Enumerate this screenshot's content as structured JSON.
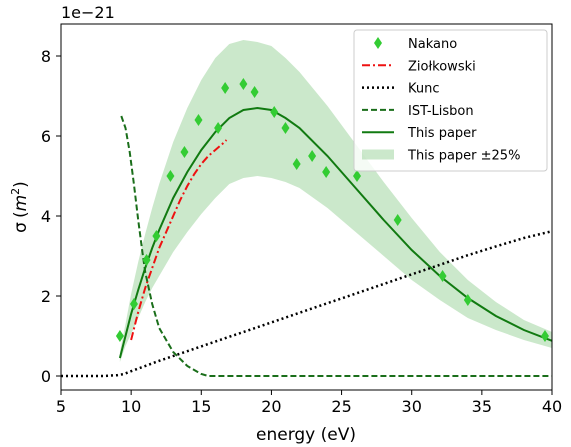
{
  "chart_data": {
    "type": "line",
    "xlabel": "energy (eV)",
    "ylabel": "σ (m²)",
    "ylabel_sigma": "σ",
    "ylabel_unit_open": "(",
    "ylabel_unit_m": "m",
    "ylabel_unit_exp": "2",
    "ylabel_unit_close": ")",
    "offset_text": "1e−21",
    "xlim": [
      5,
      40
    ],
    "ylim": [
      -0.35,
      8.8
    ],
    "xticks": [
      5,
      10,
      15,
      20,
      25,
      30,
      35,
      40
    ],
    "xtick_labels": [
      "5",
      "10",
      "15",
      "20",
      "25",
      "30",
      "35",
      "40"
    ],
    "yticks": [
      0,
      2,
      4,
      6,
      8
    ],
    "ytick_labels": [
      "0",
      "2",
      "4",
      "6",
      "8"
    ],
    "grid": false,
    "legend_position": "top-right",
    "series": [
      {
        "name": "Nakano",
        "kind": "scatter",
        "color": "#33cc33",
        "x": [
          9.2,
          10.2,
          11.1,
          11.8,
          12.8,
          13.8,
          14.8,
          16.2,
          16.7,
          18.0,
          18.8,
          20.2,
          21.0,
          21.8,
          22.9,
          23.9,
          26.1,
          29.0,
          32.2,
          34.0,
          39.5
        ],
        "y": [
          1.0,
          1.8,
          2.9,
          3.5,
          5.0,
          5.6,
          6.4,
          6.2,
          7.2,
          7.3,
          7.1,
          6.6,
          6.2,
          5.3,
          5.5,
          5.1,
          5.0,
          3.9,
          2.5,
          1.9,
          1.0
        ]
      },
      {
        "name": "Ziołkowski",
        "kind": "line",
        "style": "dashdot",
        "color": "#ee1111",
        "x": [
          10.0,
          10.5,
          11.0,
          11.5,
          12.0,
          12.5,
          13.0,
          13.5,
          14.0,
          14.5,
          15.0,
          15.5,
          16.0,
          16.5,
          16.8
        ],
        "y": [
          0.9,
          1.6,
          2.2,
          2.7,
          3.2,
          3.6,
          4.0,
          4.4,
          4.75,
          5.05,
          5.3,
          5.5,
          5.65,
          5.8,
          5.9
        ]
      },
      {
        "name": "Kunc",
        "kind": "line",
        "style": "dotted",
        "color": "#000000",
        "x": [
          5.0,
          8.0,
          9.0,
          9.5,
          10.0,
          11.0,
          12.0,
          13.0,
          14.0,
          15.0,
          16.0,
          17.0,
          18.0,
          20.0,
          22.0,
          24.0,
          26.0,
          28.0,
          30.0,
          32.0,
          34.0,
          36.0,
          38.0,
          40.0
        ],
        "y": [
          0.0,
          0.0,
          0.02,
          0.05,
          0.12,
          0.25,
          0.38,
          0.5,
          0.62,
          0.74,
          0.86,
          0.98,
          1.1,
          1.34,
          1.58,
          1.82,
          2.06,
          2.3,
          2.54,
          2.78,
          3.02,
          3.24,
          3.45,
          3.62
        ]
      },
      {
        "name": "IST-Lisbon",
        "kind": "line",
        "style": "dashed",
        "color": "#1a6e1a",
        "x": [
          9.3,
          9.6,
          9.9,
          10.2,
          10.5,
          10.8,
          11.0,
          11.5,
          12.0,
          13.0,
          14.0,
          15.0,
          15.5,
          16.0,
          17.0,
          18.0,
          20.0,
          22.0,
          24.0,
          26.0,
          28.0,
          30.0,
          32.0,
          34.0,
          36.0,
          38.0,
          40.0
        ],
        "y": [
          6.5,
          6.2,
          5.6,
          4.8,
          3.9,
          3.1,
          2.6,
          1.8,
          1.2,
          0.6,
          0.25,
          0.05,
          0.0,
          0.0,
          0.0,
          0.0,
          0.0,
          0.0,
          0.0,
          0.0,
          0.0,
          0.0,
          0.0,
          0.0,
          0.0,
          0.0,
          0.0
        ]
      },
      {
        "name": "This paper",
        "kind": "line",
        "style": "solid",
        "color": "#117a11",
        "x": [
          9.2,
          9.6,
          10.0,
          10.5,
          11.0,
          11.5,
          12.0,
          13.0,
          14.0,
          15.0,
          16.0,
          17.0,
          18.0,
          19.0,
          20.0,
          21.0,
          22.0,
          24.0,
          26.0,
          28.0,
          30.0,
          32.0,
          34.0,
          36.0,
          38.0,
          40.0
        ],
        "y": [
          0.45,
          1.0,
          1.55,
          2.15,
          2.7,
          3.2,
          3.65,
          4.45,
          5.1,
          5.65,
          6.1,
          6.45,
          6.65,
          6.7,
          6.65,
          6.45,
          6.2,
          5.5,
          4.7,
          3.9,
          3.15,
          2.5,
          1.95,
          1.5,
          1.15,
          0.88
        ]
      },
      {
        "name": "This paper ±25%",
        "kind": "band",
        "color": "#a8d8a8",
        "x": [
          9.2,
          9.6,
          10.0,
          10.5,
          11.0,
          11.5,
          12.0,
          13.0,
          14.0,
          15.0,
          16.0,
          17.0,
          18.0,
          19.0,
          20.0,
          21.0,
          22.0,
          24.0,
          26.0,
          28.0,
          30.0,
          32.0,
          34.0,
          36.0,
          38.0,
          40.0
        ],
        "upper": [
          0.6,
          1.3,
          2.05,
          2.85,
          3.55,
          4.2,
          4.8,
          5.85,
          6.7,
          7.4,
          7.95,
          8.3,
          8.4,
          8.35,
          8.25,
          7.95,
          7.6,
          6.75,
          5.8,
          4.85,
          3.95,
          3.1,
          2.4,
          1.85,
          1.4,
          1.1
        ],
        "lower": [
          0.35,
          0.75,
          1.05,
          1.45,
          1.85,
          2.2,
          2.5,
          3.1,
          3.6,
          4.05,
          4.45,
          4.8,
          4.95,
          5.0,
          4.95,
          4.85,
          4.7,
          4.2,
          3.6,
          3.0,
          2.4,
          1.9,
          1.45,
          1.15,
          0.9,
          0.7
        ]
      }
    ]
  }
}
